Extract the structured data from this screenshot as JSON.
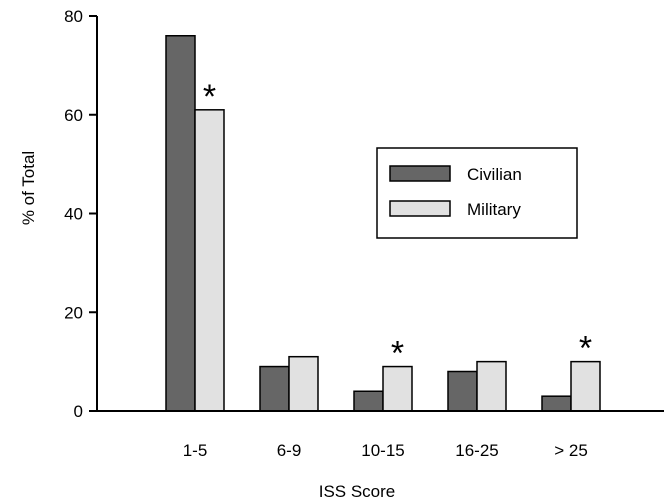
{
  "chart_data": {
    "type": "bar",
    "title": "",
    "xlabel": "ISS Score",
    "ylabel": "% of Total",
    "ylim": [
      0,
      80
    ],
    "yticks": [
      0,
      20,
      40,
      60,
      80
    ],
    "categories": [
      "1-5",
      "6-9",
      "10-15",
      "16-25",
      "> 25"
    ],
    "series": [
      {
        "name": "Civilian",
        "color": "#666666",
        "values": [
          76,
          9,
          4,
          8,
          3
        ]
      },
      {
        "name": "Military",
        "color": "#e1e1e1",
        "values": [
          61,
          11,
          9,
          10,
          10
        ]
      }
    ],
    "annotations": [
      {
        "category": "1-5",
        "series": "Military",
        "text": "*"
      },
      {
        "category": "10-15",
        "series": "Military",
        "text": "*"
      },
      {
        "category": "> 25",
        "series": "Military",
        "text": "*"
      }
    ],
    "legend": "center-right",
    "grid": false
  }
}
